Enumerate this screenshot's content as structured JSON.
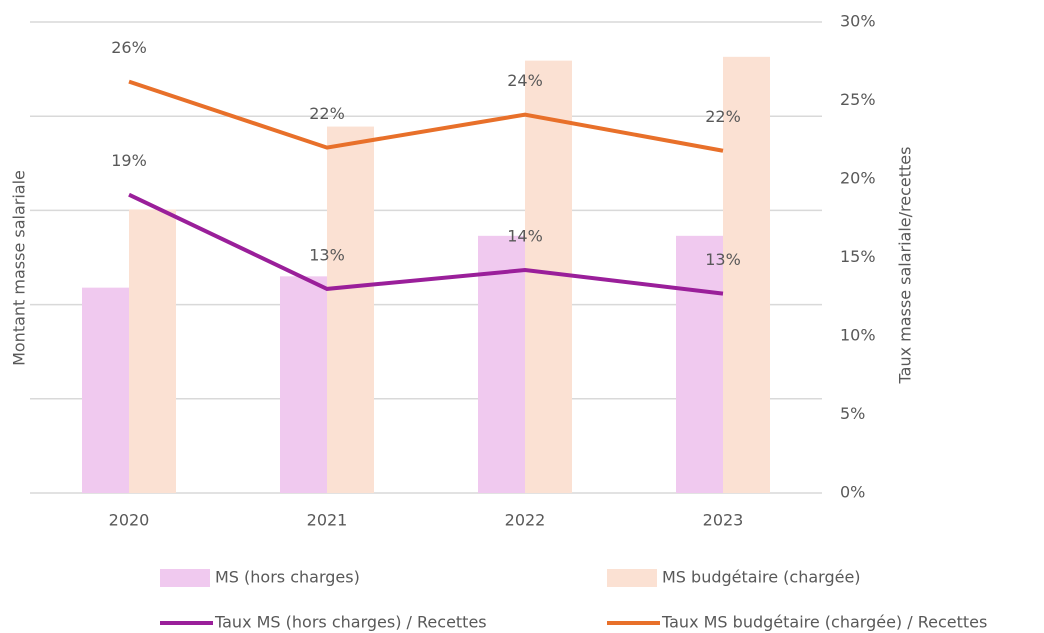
{
  "chart_data": {
    "type": "bar",
    "y_label": "Montant masse salariale",
    "y2_label": "Taux masse salariale/recettes",
    "categories": [
      "2020",
      "2021",
      "2022",
      "2023"
    ],
    "ylim": [
      0,
      5
    ],
    "yticks": [
      0,
      1,
      2,
      3,
      4,
      5
    ],
    "y2lim": [
      0,
      30
    ],
    "y2ticks": [
      {
        "value": 0,
        "label": "0%"
      },
      {
        "value": 5,
        "label": "5%"
      },
      {
        "value": 10,
        "label": "10%"
      },
      {
        "value": 15,
        "label": "15%"
      },
      {
        "value": 20,
        "label": "20%"
      },
      {
        "value": 25,
        "label": "25%"
      },
      {
        "value": 30,
        "label": "30%"
      }
    ],
    "grid": true,
    "series": [
      {
        "name": "MS (hors charges)",
        "type": "bar",
        "color": "#f0c9ef",
        "values": [
          2.18,
          2.3,
          2.73,
          2.73
        ]
      },
      {
        "name": "MS budgétaire (chargée)",
        "type": "bar",
        "color": "#fbe1d3",
        "values": [
          3.01,
          3.89,
          4.59,
          4.63
        ]
      },
      {
        "name": "Taux MS (hors charges) / Recettes",
        "type": "line",
        "axis": "y2",
        "color": "#9a1f9a",
        "values": [
          19.0,
          13.0,
          14.2,
          12.7
        ],
        "value_labels": [
          "19%",
          "13%",
          "14%",
          "13%"
        ]
      },
      {
        "name": "Taux MS budgétaire (chargée) / Recettes",
        "type": "line",
        "axis": "y2",
        "color": "#e8702a",
        "values": [
          26.2,
          22.0,
          24.1,
          21.8
        ],
        "value_labels": [
          "26%",
          "22%",
          "24%",
          "22%"
        ]
      }
    ]
  }
}
